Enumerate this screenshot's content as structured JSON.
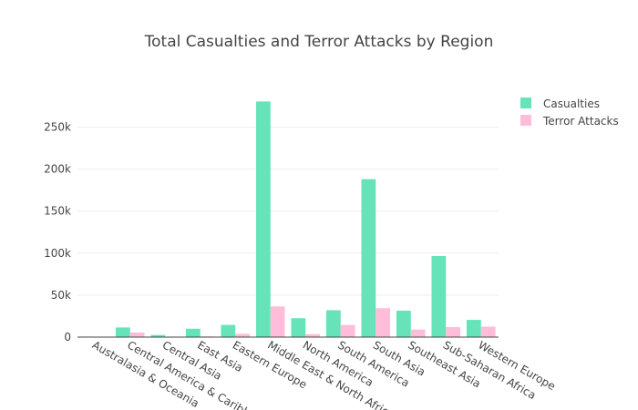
{
  "chart_data": {
    "type": "bar",
    "title": "Total Casualties and Terror Attacks by Region",
    "xlabel": "",
    "ylabel": "",
    "categories": [
      "Australasia & Oceania",
      "Central America & Caribbean",
      "Central Asia",
      "East Asia",
      "Eastern Europe",
      "Middle East & North Africa",
      "North America",
      "South America",
      "South Asia",
      "Southeast Asia",
      "Sub-Saharan Africa",
      "Western Europe"
    ],
    "series": [
      {
        "name": "Casualties",
        "color": "#66e3b8",
        "values": [
          600,
          11500,
          2500,
          10000,
          14500,
          280500,
          22500,
          32000,
          188000,
          31500,
          96500,
          20500
        ]
      },
      {
        "name": "Terror Attacks",
        "color": "#ffbdd9",
        "values": [
          300,
          5500,
          600,
          800,
          4000,
          36500,
          3500,
          14500,
          34500,
          9000,
          12000,
          12500
        ]
      }
    ],
    "ylim": [
      0,
      295000
    ],
    "yticks": [
      0,
      50000,
      100000,
      150000,
      200000,
      250000
    ],
    "ytick_labels": [
      "0",
      "50k",
      "100k",
      "150k",
      "200k",
      "250k"
    ],
    "grid": true,
    "legend_position": "top-right"
  }
}
